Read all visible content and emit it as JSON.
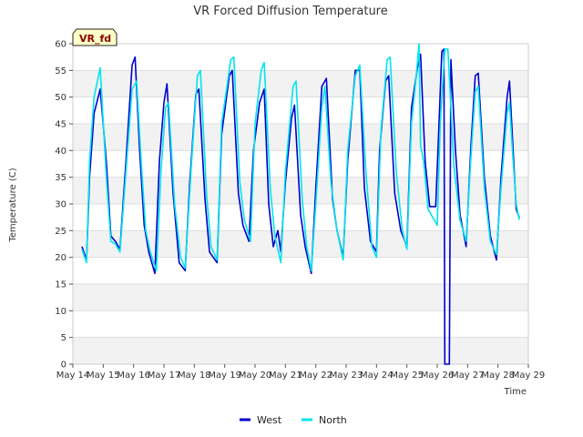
{
  "chart_data": {
    "type": "line",
    "title": "VR Forced Diffusion Temperature",
    "xlabel": "Time",
    "ylabel": "Temperature (C)",
    "badge": "VR_fd",
    "ylim": [
      0,
      60
    ],
    "xlim": [
      14,
      29
    ],
    "yticks": [
      0,
      5,
      10,
      15,
      20,
      25,
      30,
      35,
      40,
      45,
      50,
      55,
      60
    ],
    "xticks": [
      {
        "value": 14,
        "label": "May 14"
      },
      {
        "value": 15,
        "label": "May 15"
      },
      {
        "value": 16,
        "label": "May 16"
      },
      {
        "value": 17,
        "label": "May 17"
      },
      {
        "value": 18,
        "label": "May 18"
      },
      {
        "value": 19,
        "label": "May 19"
      },
      {
        "value": 20,
        "label": "May 20"
      },
      {
        "value": 21,
        "label": "May 21"
      },
      {
        "value": 22,
        "label": "May 22"
      },
      {
        "value": 23,
        "label": "May 23"
      },
      {
        "value": 24,
        "label": "May 24"
      },
      {
        "value": 25,
        "label": "May 25"
      },
      {
        "value": 26,
        "label": "May 26"
      },
      {
        "value": 27,
        "label": "May 27"
      },
      {
        "value": 28,
        "label": "May 28"
      },
      {
        "value": 29,
        "label": "May 29"
      }
    ],
    "grid": true,
    "banded_background": true,
    "legend_position": "bottom-center",
    "series": [
      {
        "name": "West",
        "color": "#0000cc",
        "points": [
          [
            14.3,
            22
          ],
          [
            14.45,
            19.5
          ],
          [
            14.55,
            35
          ],
          [
            14.7,
            47
          ],
          [
            14.9,
            51.5
          ],
          [
            15.1,
            38
          ],
          [
            15.25,
            24
          ],
          [
            15.4,
            23
          ],
          [
            15.55,
            21.5
          ],
          [
            15.75,
            38
          ],
          [
            15.95,
            56
          ],
          [
            16.05,
            57.5
          ],
          [
            16.2,
            40
          ],
          [
            16.35,
            26
          ],
          [
            16.5,
            21
          ],
          [
            16.7,
            17
          ],
          [
            16.85,
            38
          ],
          [
            17.0,
            49
          ],
          [
            17.1,
            52.5
          ],
          [
            17.3,
            32
          ],
          [
            17.5,
            19
          ],
          [
            17.7,
            17.5
          ],
          [
            17.85,
            34
          ],
          [
            18.05,
            50.5
          ],
          [
            18.15,
            51.5
          ],
          [
            18.35,
            31
          ],
          [
            18.5,
            21
          ],
          [
            18.75,
            19
          ],
          [
            18.9,
            43
          ],
          [
            19.15,
            54
          ],
          [
            19.25,
            55
          ],
          [
            19.45,
            32
          ],
          [
            19.6,
            26
          ],
          [
            19.8,
            23
          ],
          [
            19.95,
            40
          ],
          [
            20.15,
            49
          ],
          [
            20.3,
            51.5
          ],
          [
            20.45,
            30
          ],
          [
            20.6,
            22
          ],
          [
            20.75,
            25
          ],
          [
            20.85,
            21
          ],
          [
            21.0,
            34
          ],
          [
            21.2,
            46
          ],
          [
            21.3,
            48.5
          ],
          [
            21.5,
            28
          ],
          [
            21.65,
            22
          ],
          [
            21.85,
            17
          ],
          [
            22.0,
            33
          ],
          [
            22.2,
            52
          ],
          [
            22.35,
            53.5
          ],
          [
            22.55,
            31
          ],
          [
            22.7,
            25
          ],
          [
            22.9,
            20
          ],
          [
            23.05,
            38
          ],
          [
            23.3,
            55
          ],
          [
            23.45,
            55
          ],
          [
            23.6,
            33
          ],
          [
            23.8,
            23
          ],
          [
            24.0,
            21
          ],
          [
            24.1,
            40
          ],
          [
            24.3,
            53
          ],
          [
            24.4,
            54
          ],
          [
            24.6,
            32
          ],
          [
            24.8,
            25
          ],
          [
            25.0,
            22
          ],
          [
            25.15,
            48
          ],
          [
            25.35,
            55.5
          ],
          [
            25.45,
            58
          ],
          [
            25.6,
            38
          ],
          [
            25.75,
            29.5
          ],
          [
            25.95,
            29.5
          ],
          [
            26.05,
            44
          ],
          [
            26.15,
            58.5
          ],
          [
            26.22,
            59
          ],
          [
            26.25,
            0
          ],
          [
            26.4,
            0
          ],
          [
            26.45,
            57
          ],
          [
            26.6,
            40
          ],
          [
            26.75,
            28
          ],
          [
            26.95,
            22
          ],
          [
            27.1,
            40
          ],
          [
            27.25,
            54
          ],
          [
            27.35,
            54.5
          ],
          [
            27.55,
            35
          ],
          [
            27.75,
            24
          ],
          [
            27.95,
            19.5
          ],
          [
            28.1,
            35
          ],
          [
            28.3,
            50
          ],
          [
            28.38,
            53
          ],
          [
            28.5,
            40
          ],
          [
            28.6,
            29
          ],
          [
            28.7,
            27.5
          ]
        ]
      },
      {
        "name": "North",
        "color": "#00e5ee",
        "points": [
          [
            14.3,
            21.5
          ],
          [
            14.45,
            19
          ],
          [
            14.55,
            38
          ],
          [
            14.7,
            50
          ],
          [
            14.9,
            55.5
          ],
          [
            15.1,
            35
          ],
          [
            15.25,
            23
          ],
          [
            15.4,
            22.5
          ],
          [
            15.55,
            21
          ],
          [
            15.75,
            36
          ],
          [
            15.95,
            51.5
          ],
          [
            16.1,
            53
          ],
          [
            16.25,
            38
          ],
          [
            16.4,
            25
          ],
          [
            16.55,
            21
          ],
          [
            16.75,
            17.5
          ],
          [
            16.9,
            36
          ],
          [
            17.05,
            48
          ],
          [
            17.15,
            49
          ],
          [
            17.35,
            30
          ],
          [
            17.55,
            20
          ],
          [
            17.7,
            18
          ],
          [
            17.9,
            37
          ],
          [
            18.1,
            54
          ],
          [
            18.2,
            55
          ],
          [
            18.4,
            32
          ],
          [
            18.55,
            22
          ],
          [
            18.75,
            19.5
          ],
          [
            18.9,
            45
          ],
          [
            19.2,
            57
          ],
          [
            19.3,
            57.5
          ],
          [
            19.5,
            34
          ],
          [
            19.65,
            27
          ],
          [
            19.85,
            23
          ],
          [
            20.0,
            45
          ],
          [
            20.2,
            55
          ],
          [
            20.3,
            56.5
          ],
          [
            20.5,
            33
          ],
          [
            20.65,
            24
          ],
          [
            20.85,
            19
          ],
          [
            21.0,
            36
          ],
          [
            21.25,
            52
          ],
          [
            21.35,
            53
          ],
          [
            21.55,
            31
          ],
          [
            21.7,
            22
          ],
          [
            21.85,
            17.5
          ],
          [
            22.0,
            30
          ],
          [
            22.2,
            48
          ],
          [
            22.3,
            52
          ],
          [
            22.5,
            34
          ],
          [
            22.7,
            25
          ],
          [
            22.9,
            19.5
          ],
          [
            23.05,
            40
          ],
          [
            23.3,
            54
          ],
          [
            23.45,
            56
          ],
          [
            23.65,
            36
          ],
          [
            23.85,
            22
          ],
          [
            24.0,
            20
          ],
          [
            24.15,
            44
          ],
          [
            24.35,
            57
          ],
          [
            24.45,
            57.5
          ],
          [
            24.65,
            36
          ],
          [
            24.85,
            25
          ],
          [
            25.0,
            21.5
          ],
          [
            25.15,
            45
          ],
          [
            25.3,
            53.5
          ],
          [
            25.4,
            60
          ],
          [
            25.45,
            41
          ],
          [
            25.55,
            38
          ],
          [
            25.7,
            29
          ],
          [
            25.9,
            27
          ],
          [
            26.0,
            26
          ],
          [
            26.1,
            45
          ],
          [
            26.25,
            59
          ],
          [
            26.35,
            59
          ],
          [
            26.55,
            37
          ],
          [
            26.75,
            27
          ],
          [
            26.95,
            23
          ],
          [
            27.1,
            38
          ],
          [
            27.25,
            51
          ],
          [
            27.35,
            52
          ],
          [
            27.55,
            33
          ],
          [
            27.75,
            23
          ],
          [
            27.95,
            20.5
          ],
          [
            28.1,
            33
          ],
          [
            28.3,
            47
          ],
          [
            28.38,
            49
          ],
          [
            28.5,
            38
          ],
          [
            28.6,
            30
          ],
          [
            28.7,
            27
          ]
        ]
      }
    ]
  }
}
